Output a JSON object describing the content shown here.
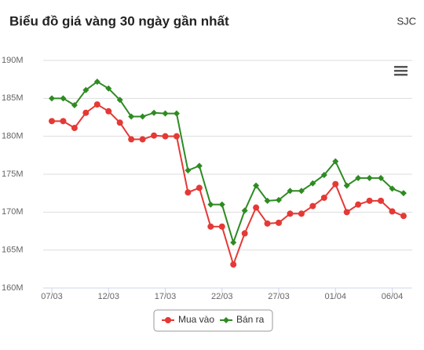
{
  "chart_data": {
    "type": "line",
    "title": "Biểu đồ giá vàng 30 ngày gần nhất",
    "subtitle": "SJC",
    "categories": [
      "07/03",
      null,
      null,
      null,
      null,
      "12/03",
      null,
      null,
      null,
      null,
      "17/03",
      null,
      null,
      null,
      null,
      "22/03",
      null,
      null,
      null,
      null,
      "27/03",
      null,
      null,
      null,
      null,
      "01/04",
      null,
      null,
      null,
      null,
      "06/04",
      null
    ],
    "series": [
      {
        "name": "Mua vào",
        "color": "#e53935",
        "values": [
          182.0,
          182.0,
          181.1,
          183.1,
          184.2,
          183.3,
          181.8,
          179.6,
          179.6,
          180.1,
          180.0,
          180.0,
          172.6,
          173.2,
          168.1,
          168.1,
          163.1,
          167.2,
          170.6,
          168.5,
          168.6,
          169.8,
          169.8,
          170.8,
          171.9,
          173.7,
          170.0,
          171.0,
          171.5,
          171.5,
          170.1,
          169.5
        ]
      },
      {
        "name": "Bán ra",
        "color": "#2e8b22",
        "values": [
          185.0,
          185.0,
          184.1,
          186.1,
          187.2,
          186.3,
          184.8,
          182.6,
          182.6,
          183.1,
          183.0,
          183.0,
          175.5,
          176.1,
          171.0,
          171.0,
          166.0,
          170.2,
          173.5,
          171.5,
          171.6,
          172.8,
          172.8,
          173.8,
          174.9,
          176.7,
          173.5,
          174.5,
          174.5,
          174.5,
          173.1,
          172.5
        ]
      }
    ],
    "ylim": [
      160,
      190
    ],
    "yticks": [
      {
        "value": 160,
        "label": "160M"
      },
      {
        "value": 165,
        "label": "165M"
      },
      {
        "value": 170,
        "label": "170M"
      },
      {
        "value": 175,
        "label": "175M"
      },
      {
        "value": 180,
        "label": "180M"
      },
      {
        "value": 185,
        "label": "185M"
      },
      {
        "value": 190,
        "label": "190M"
      }
    ],
    "grid": true
  }
}
